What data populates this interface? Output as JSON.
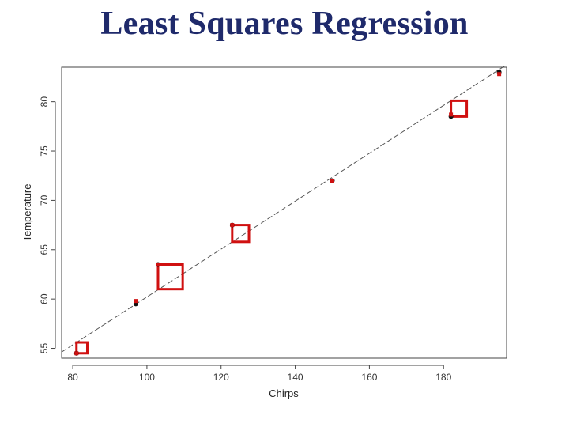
{
  "slide": {
    "title": "Least Squares Regression"
  },
  "chart_data": {
    "type": "scatter",
    "xlabel": "Chirps",
    "ylabel": "Temperature",
    "xlim": [
      77,
      197
    ],
    "ylim": [
      54,
      83.5
    ],
    "x_ticks": [
      80,
      100,
      120,
      140,
      160,
      180
    ],
    "y_ticks": [
      55,
      60,
      65,
      70,
      75,
      80
    ],
    "grid": false,
    "series": [
      {
        "points": [
          {
            "x": 81,
            "y": 54.5
          },
          {
            "x": 97,
            "y": 59.5
          },
          {
            "x": 103,
            "y": 63.5
          },
          {
            "x": 123,
            "y": 67.5
          },
          {
            "x": 150,
            "y": 72
          },
          {
            "x": 182,
            "y": 78.5
          },
          {
            "x": 195,
            "y": 83
          }
        ]
      },
      {
        "points": [
          {
            "x": 81,
            "y": 54.5
          },
          {
            "x": 97,
            "y": 59.8
          },
          {
            "x": 103,
            "y": 63.5
          },
          {
            "x": 123,
            "y": 67.5
          },
          {
            "x": 150,
            "y": 72
          },
          {
            "x": 182,
            "y": 78.7
          },
          {
            "x": 195,
            "y": 82.8
          }
        ]
      }
    ],
    "regression_line": {
      "slope": 0.2427,
      "intercept": 35.94
    },
    "residual_squares": [
      {
        "x": 81,
        "y": 54.5,
        "fitted": 55.6
      },
      {
        "x": 103,
        "y": 63.5,
        "fitted": 61.0
      },
      {
        "x": 123,
        "y": 67.5,
        "fitted": 65.8
      },
      {
        "x": 182,
        "y": 78.5,
        "fitted": 80.1
      }
    ],
    "colors": {
      "observed": "#111111",
      "highlight": "#d01010",
      "line": "#555555",
      "axis": "#444444"
    }
  }
}
